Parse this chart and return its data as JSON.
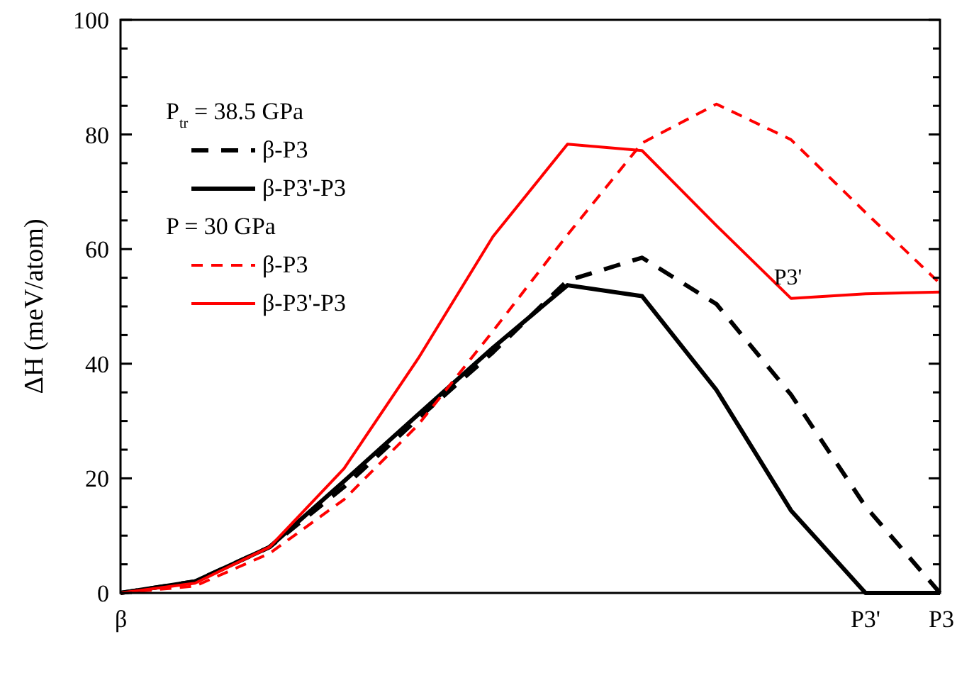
{
  "chart_data": {
    "type": "line",
    "ylabel": "ΔH (meV/atom)",
    "categories": [
      "β",
      null,
      null,
      null,
      null,
      null,
      null,
      null,
      null,
      null,
      "P3'",
      "P3"
    ],
    "ylim": [
      0,
      100
    ],
    "yticks": [
      0,
      {
        "value": 5,
        "label": null
      },
      {
        "value": 10,
        "label": null
      },
      {
        "value": 15,
        "label": null
      },
      20,
      {
        "value": 25,
        "label": null
      },
      {
        "value": 30,
        "label": null
      },
      {
        "value": 35,
        "label": null
      },
      40,
      {
        "value": 45,
        "label": null
      },
      {
        "value": 50,
        "label": null
      },
      {
        "value": 55,
        "label": null
      },
      60,
      {
        "value": 65,
        "label": null
      },
      {
        "value": 70,
        "label": null
      },
      {
        "value": 75,
        "label": null
      },
      80,
      {
        "value": 85,
        "label": null
      },
      {
        "value": 90,
        "label": null
      },
      {
        "value": 95,
        "label": null
      },
      100
    ],
    "grid": false,
    "legend": "top left",
    "marker": "none",
    "series": [
      {
        "name": "β-P3",
        "color": "#000000",
        "line_style": "dashed",
        "values": [
          0,
          2,
          8,
          18.5,
          30.5,
          42,
          54.5,
          58.5,
          50.4,
          34.6,
          15.1,
          0
        ]
      },
      {
        "name": "β-P3'-P3",
        "color": "#000000",
        "line_style": "solid",
        "values": [
          0,
          2,
          8,
          19.5,
          31.2,
          42.8,
          53.7,
          51.8,
          35.4,
          14.4,
          0,
          0
        ]
      },
      {
        "name": "β-P3",
        "color": "#ff0000",
        "line_style": "dashed",
        "values": [
          0,
          1.2,
          6.9,
          16.3,
          29.4,
          45.7,
          62.5,
          78.5,
          85.3,
          79.1,
          66.4,
          54
        ]
      },
      {
        "name": "β-P3'-P3",
        "color": "#ff0000",
        "line_style": "solid",
        "values": [
          0,
          1.7,
          8,
          21.7,
          41,
          62.2,
          78.3,
          77.2,
          64.1,
          51.4,
          52.2,
          52.5
        ]
      }
    ],
    "annotations": [
      "P$_{tr}$ = 38.5 GPa",
      "P = 30 GPa",
      {
        "text": "P3'",
        "y": 51.4
      }
    ]
  }
}
